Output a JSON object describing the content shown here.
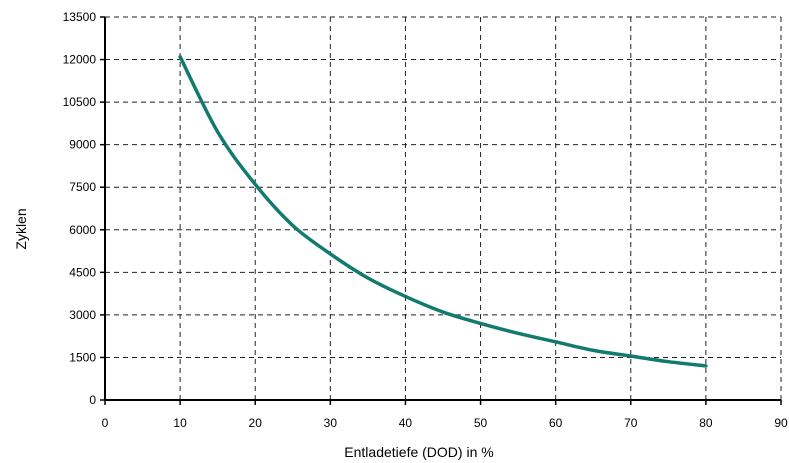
{
  "chart_data": {
    "type": "line",
    "xlabel": "Entladetiefe (DOD) in %",
    "ylabel": "Zyklen",
    "xlim": [
      0,
      90
    ],
    "ylim": [
      0,
      13500
    ],
    "xticks": [
      0,
      10,
      20,
      30,
      40,
      50,
      60,
      70,
      80,
      90
    ],
    "xtick_labels": [
      "0",
      "10",
      "20",
      "30",
      "40",
      "50",
      "60",
      "70",
      "80",
      "90"
    ],
    "yticks": [
      0,
      1500,
      3000,
      4500,
      6000,
      7500,
      9000,
      10500,
      12000,
      13500
    ],
    "ytick_labels": [
      "0",
      "1500",
      "3000",
      "4500",
      "6000",
      "7500",
      "9000",
      "10500",
      "12000",
      "13500"
    ],
    "grid": true,
    "grid_style": "dashed",
    "series": [
      {
        "color": "#127a6e",
        "x": [
          10,
          15,
          20,
          25,
          30,
          35,
          40,
          45,
          50,
          55,
          60,
          65,
          70,
          75,
          80
        ],
        "y": [
          12100,
          9450,
          7600,
          6150,
          5150,
          4300,
          3650,
          3100,
          2700,
          2350,
          2050,
          1750,
          1550,
          1350,
          1200
        ]
      }
    ]
  }
}
